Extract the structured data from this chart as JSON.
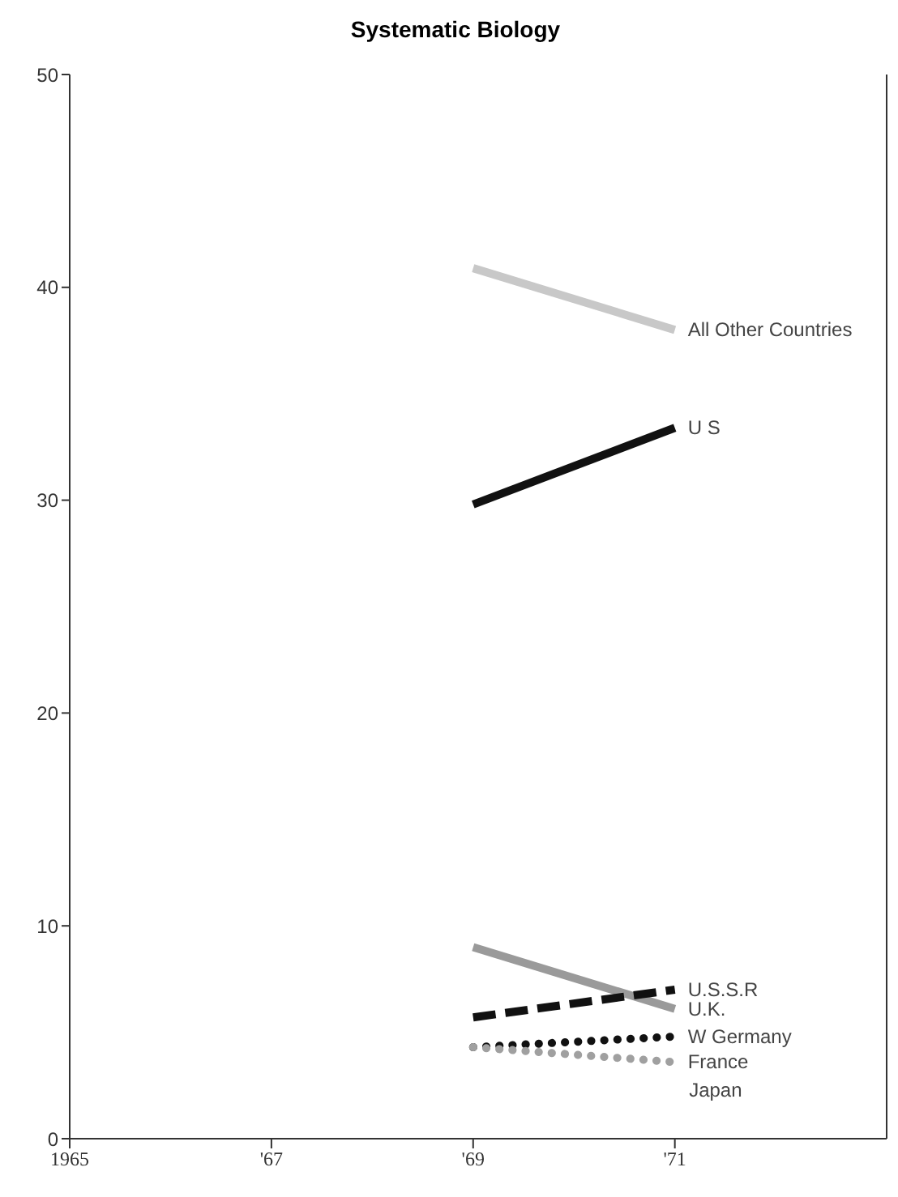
{
  "chart_data": {
    "type": "line",
    "title": "Systematic Biology",
    "x": [
      1969,
      1971
    ],
    "xlim": [
      1965,
      1973.1
    ],
    "xticks": [
      1965,
      {
        "value": 1967,
        "label": "'67"
      },
      {
        "value": 1969,
        "label": "'69"
      },
      {
        "value": 1971,
        "label": "'71"
      }
    ],
    "ylim": [
      0,
      50
    ],
    "yticks": [
      0,
      10,
      20,
      30,
      40,
      50
    ],
    "marker": "none",
    "series": [
      {
        "name": "All Other Countries",
        "color": "#c8c8c8",
        "values": [
          40.9,
          38.0
        ],
        "line_style": "solid"
      },
      {
        "name": "U S",
        "color": "#111111",
        "values": [
          29.8,
          33.4
        ],
        "line_style": "solid"
      },
      {
        "name": "U.K.",
        "color": "#9a9a9a",
        "values": [
          9.0,
          6.1
        ],
        "line_style": "solid"
      },
      {
        "name": "U.S.S.R",
        "color": "#111111",
        "values": [
          5.7,
          7.0
        ],
        "line_style": "dashed"
      },
      {
        "name": "W  Germany",
        "color": "#111111",
        "values": [
          4.3,
          4.8
        ],
        "line_style": "dotted"
      },
      {
        "name": "France",
        "color": "#a0a0a0",
        "values": [
          4.3,
          3.6
        ],
        "line_style": "dotted"
      }
    ],
    "annotations": [
      "Japan"
    ]
  }
}
